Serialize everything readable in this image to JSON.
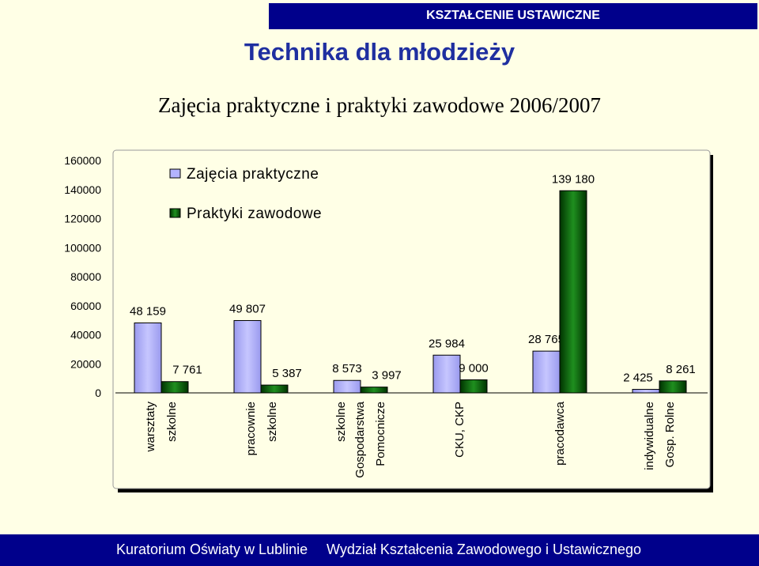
{
  "header": {
    "banner": "KSZTAŁCENIE USTAWICZNE",
    "title": "Technika dla młodzieży"
  },
  "footer": {
    "left": "Kuratorium Oświaty w Lublinie",
    "right": "Wydział Kształcenia Zawodowego i Ustawicznego"
  },
  "chart_data": {
    "type": "bar",
    "title": "Zajęcia praktyczne i praktyki zawodowe 2006/2007",
    "xlabel": "",
    "ylabel": "",
    "ylim": [
      0,
      160000
    ],
    "yticks": [
      0,
      20000,
      40000,
      60000,
      80000,
      100000,
      120000,
      140000,
      160000
    ],
    "grid": false,
    "legend_position": "top-left",
    "categories": [
      [
        "warsztaty",
        "szkolne"
      ],
      [
        "pracownie",
        "szkolne"
      ],
      [
        "szkolne",
        "Gospodarstwa",
        "Pomocnicze"
      ],
      [
        "CKU, CKP"
      ],
      [
        "pracodawca"
      ],
      [
        "indywidualne",
        "Gosp. Rolne"
      ]
    ],
    "series": [
      {
        "name": "Zajęcia praktyczne",
        "color": "#b3b3ff",
        "values": [
          48159,
          49807,
          8573,
          25984,
          28765,
          2425
        ],
        "labels": [
          "48 159",
          "49 807",
          "8 573",
          "25 984",
          "28 765",
          "2 425"
        ]
      },
      {
        "name": "Praktyki zawodowe",
        "color": "#0a6b0a",
        "values": [
          7761,
          5387,
          3997,
          9000,
          139180,
          8261
        ],
        "labels": [
          "7 761",
          "5 387",
          "3 997",
          "9 000",
          "139 180",
          "8 261"
        ]
      }
    ]
  }
}
